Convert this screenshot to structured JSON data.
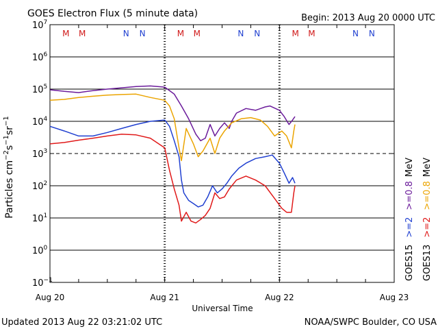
{
  "header": {
    "title": "GOES Electron Flux (5 minute data)",
    "begin": "Begin: 2013 Aug 20 0000 UTC"
  },
  "footer": {
    "updated": "Updated 2013 Aug 22 03:21:02 UTC",
    "source": "NOAA/SWPC Boulder, CO USA"
  },
  "colors": {
    "goes15_ge2": "#1f3fd0",
    "goes13_ge2": "#e01818",
    "goes15_ge08": "#6a1a9a",
    "goes13_ge08": "#eba400",
    "marker_M": "#d01818",
    "marker_N": "#1f3fd0"
  },
  "chart_data": {
    "type": "line",
    "title": "GOES Electron Flux (5 minute data)",
    "xlabel": "Universal Time",
    "ylabel": "Particles cm⁻²s⁻¹sr⁻¹",
    "ylabel_parts": {
      "base": "Particles cm",
      "e1": "−2",
      "mid1": "s",
      "e2": "−1",
      "mid2": "sr",
      "e3": "−1"
    },
    "y_scale": "log",
    "ylim": [
      0.1,
      10000000
    ],
    "y_ticks": [
      {
        "value": 10000000,
        "exp": "7"
      },
      {
        "value": 1000000,
        "exp": "6"
      },
      {
        "value": 100000,
        "exp": "5"
      },
      {
        "value": 10000,
        "exp": "4"
      },
      {
        "value": 1000,
        "exp": "3"
      },
      {
        "value": 100,
        "exp": "2"
      },
      {
        "value": 10,
        "exp": "1"
      },
      {
        "value": 1,
        "exp": "0"
      },
      {
        "value": 0.1,
        "exp": "−1"
      }
    ],
    "threshold": 1000,
    "x_range": [
      "2013-08-20 00:00",
      "2013-08-23 00:00"
    ],
    "x_ticks": [
      {
        "at": "2013-08-20 00:00",
        "label": "Aug 20"
      },
      {
        "at": "2013-08-21 00:00",
        "label": "Aug 21"
      },
      {
        "at": "2013-08-22 00:00",
        "label": "Aug 22"
      },
      {
        "at": "2013-08-23 00:00",
        "label": "Aug 23"
      }
    ],
    "markers": [
      {
        "at": "2013-08-20 03:20",
        "label": "M",
        "kind": "M"
      },
      {
        "at": "2013-08-20 06:45",
        "label": "M",
        "kind": "M"
      },
      {
        "at": "2013-08-20 15:55",
        "label": "N",
        "kind": "N"
      },
      {
        "at": "2013-08-20 19:20",
        "label": "N",
        "kind": "N"
      },
      {
        "at": "2013-08-21 03:20",
        "label": "M",
        "kind": "M"
      },
      {
        "at": "2013-08-21 06:45",
        "label": "M",
        "kind": "M"
      },
      {
        "at": "2013-08-21 15:55",
        "label": "N",
        "kind": "N"
      },
      {
        "at": "2013-08-21 19:20",
        "label": "N",
        "kind": "N"
      },
      {
        "at": "2013-08-22 03:20",
        "label": "M",
        "kind": "M"
      },
      {
        "at": "2013-08-22 06:45",
        "label": "M",
        "kind": "M"
      },
      {
        "at": "2013-08-22 15:55",
        "label": "N",
        "kind": "N"
      },
      {
        "at": "2013-08-22 19:20",
        "label": "N",
        "kind": "N"
      }
    ],
    "legend": [
      {
        "satellite": "GOES15",
        "threshold": ">=2",
        "energy_threshold": ">=0.8",
        "unit": "MeV"
      },
      {
        "satellite": "GOES13",
        "threshold": ">=2",
        "energy_threshold": ">=0.8",
        "unit": "MeV"
      }
    ],
    "series": [
      {
        "satellite": "GOES15",
        "threshold": ">=0.8 MeV",
        "color_key": "goes15_ge08",
        "points": [
          [
            "2013-08-20 00:00",
            95000
          ],
          [
            "2013-08-20 03:00",
            85000
          ],
          [
            "2013-08-20 06:00",
            78000
          ],
          [
            "2013-08-20 09:00",
            90000
          ],
          [
            "2013-08-20 12:00",
            100000
          ],
          [
            "2013-08-20 15:00",
            110000
          ],
          [
            "2013-08-20 18:00",
            120000
          ],
          [
            "2013-08-20 21:00",
            125000
          ],
          [
            "2013-08-21 00:00",
            115000
          ],
          [
            "2013-08-21 02:00",
            70000
          ],
          [
            "2013-08-21 03:30",
            30000
          ],
          [
            "2013-08-21 05:00",
            12000
          ],
          [
            "2013-08-21 06:30",
            4000
          ],
          [
            "2013-08-21 07:30",
            2500
          ],
          [
            "2013-08-21 08:30",
            3000
          ],
          [
            "2013-08-21 09:30",
            8000
          ],
          [
            "2013-08-21 10:30",
            3500
          ],
          [
            "2013-08-21 11:30",
            6000
          ],
          [
            "2013-08-21 12:30",
            9000
          ],
          [
            "2013-08-21 13:30",
            6000
          ],
          [
            "2013-08-21 14:00",
            10000
          ],
          [
            "2013-08-21 15:00",
            18000
          ],
          [
            "2013-08-21 17:00",
            25000
          ],
          [
            "2013-08-21 19:00",
            22000
          ],
          [
            "2013-08-21 21:00",
            28000
          ],
          [
            "2013-08-21 22:00",
            30000
          ],
          [
            "2013-08-22 00:00",
            22000
          ],
          [
            "2013-08-22 01:00",
            14000
          ],
          [
            "2013-08-22 02:00",
            8000
          ],
          [
            "2013-08-22 02:45",
            11000
          ],
          [
            "2013-08-22 03:15",
            14000
          ]
        ]
      },
      {
        "satellite": "GOES13",
        "threshold": ">=0.8 MeV",
        "color_key": "goes13_ge08",
        "points": [
          [
            "2013-08-20 00:00",
            45000
          ],
          [
            "2013-08-20 03:00",
            48000
          ],
          [
            "2013-08-20 06:00",
            55000
          ],
          [
            "2013-08-20 09:00",
            60000
          ],
          [
            "2013-08-20 12:00",
            65000
          ],
          [
            "2013-08-20 15:00",
            68000
          ],
          [
            "2013-08-20 18:00",
            70000
          ],
          [
            "2013-08-20 21:00",
            55000
          ],
          [
            "2013-08-21 00:00",
            45000
          ],
          [
            "2013-08-21 01:00",
            30000
          ],
          [
            "2013-08-21 02:00",
            12000
          ],
          [
            "2013-08-21 03:00",
            1500
          ],
          [
            "2013-08-21 03:30",
            600
          ],
          [
            "2013-08-21 04:30",
            6000
          ],
          [
            "2013-08-21 06:00",
            2000
          ],
          [
            "2013-08-21 07:00",
            800
          ],
          [
            "2013-08-21 08:00",
            1200
          ],
          [
            "2013-08-21 09:30",
            3000
          ],
          [
            "2013-08-21 10:30",
            1000
          ],
          [
            "2013-08-21 11:30",
            3000
          ],
          [
            "2013-08-21 12:30",
            5000
          ],
          [
            "2013-08-21 14:00",
            9000
          ],
          [
            "2013-08-21 16:00",
            12000
          ],
          [
            "2013-08-21 18:00",
            13000
          ],
          [
            "2013-08-21 20:00",
            11000
          ],
          [
            "2013-08-21 21:30",
            7000
          ],
          [
            "2013-08-21 23:00",
            3500
          ],
          [
            "2013-08-22 00:30",
            5000
          ],
          [
            "2013-08-22 01:30",
            3500
          ],
          [
            "2013-08-22 02:30",
            1500
          ],
          [
            "2013-08-22 03:00",
            5000
          ],
          [
            "2013-08-22 03:15",
            8000
          ]
        ]
      },
      {
        "satellite": "GOES15",
        "threshold": ">=2 MeV",
        "color_key": "goes15_ge2",
        "points": [
          [
            "2013-08-20 00:00",
            7000
          ],
          [
            "2013-08-20 03:00",
            5000
          ],
          [
            "2013-08-20 06:00",
            3500
          ],
          [
            "2013-08-20 09:00",
            3500
          ],
          [
            "2013-08-20 12:00",
            4500
          ],
          [
            "2013-08-20 15:00",
            6000
          ],
          [
            "2013-08-20 18:00",
            8000
          ],
          [
            "2013-08-20 21:00",
            10000
          ],
          [
            "2013-08-21 00:00",
            11000
          ],
          [
            "2013-08-21 01:00",
            7000
          ],
          [
            "2013-08-21 02:00",
            2500
          ],
          [
            "2013-08-21 03:00",
            800
          ],
          [
            "2013-08-21 03:30",
            150
          ],
          [
            "2013-08-21 04:00",
            60
          ],
          [
            "2013-08-21 05:00",
            35
          ],
          [
            "2013-08-21 06:00",
            28
          ],
          [
            "2013-08-21 07:00",
            22
          ],
          [
            "2013-08-21 08:00",
            25
          ],
          [
            "2013-08-21 09:00",
            45
          ],
          [
            "2013-08-21 10:00",
            100
          ],
          [
            "2013-08-21 11:00",
            60
          ],
          [
            "2013-08-21 12:00",
            80
          ],
          [
            "2013-08-21 13:00",
            120
          ],
          [
            "2013-08-21 14:00",
            200
          ],
          [
            "2013-08-21 15:30",
            350
          ],
          [
            "2013-08-21 17:00",
            500
          ],
          [
            "2013-08-21 19:00",
            700
          ],
          [
            "2013-08-21 21:00",
            800
          ],
          [
            "2013-08-21 22:30",
            900
          ],
          [
            "2013-08-22 00:00",
            500
          ],
          [
            "2013-08-22 01:00",
            250
          ],
          [
            "2013-08-22 02:00",
            120
          ],
          [
            "2013-08-22 02:45",
            180
          ],
          [
            "2013-08-22 03:15",
            120
          ]
        ]
      },
      {
        "satellite": "GOES13",
        "threshold": ">=2 MeV",
        "color_key": "goes13_ge2",
        "points": [
          [
            "2013-08-20 00:00",
            2000
          ],
          [
            "2013-08-20 03:00",
            2200
          ],
          [
            "2013-08-20 06:00",
            2600
          ],
          [
            "2013-08-20 09:00",
            3000
          ],
          [
            "2013-08-20 12:00",
            3500
          ],
          [
            "2013-08-20 15:00",
            4000
          ],
          [
            "2013-08-20 18:00",
            3800
          ],
          [
            "2013-08-20 21:00",
            3000
          ],
          [
            "2013-08-21 00:00",
            1500
          ],
          [
            "2013-08-21 01:00",
            300
          ],
          [
            "2013-08-21 02:00",
            80
          ],
          [
            "2013-08-21 03:00",
            25
          ],
          [
            "2013-08-21 03:30",
            8
          ],
          [
            "2013-08-21 04:30",
            15
          ],
          [
            "2013-08-21 05:30",
            8
          ],
          [
            "2013-08-21 06:30",
            7
          ],
          [
            "2013-08-21 07:30",
            9
          ],
          [
            "2013-08-21 08:30",
            12
          ],
          [
            "2013-08-21 09:30",
            20
          ],
          [
            "2013-08-21 10:30",
            60
          ],
          [
            "2013-08-21 11:30",
            40
          ],
          [
            "2013-08-21 12:30",
            45
          ],
          [
            "2013-08-21 13:30",
            80
          ],
          [
            "2013-08-21 15:00",
            150
          ],
          [
            "2013-08-21 17:00",
            200
          ],
          [
            "2013-08-21 19:00",
            150
          ],
          [
            "2013-08-21 21:00",
            100
          ],
          [
            "2013-08-21 23:00",
            40
          ],
          [
            "2013-08-22 00:30",
            20
          ],
          [
            "2013-08-22 01:30",
            15
          ],
          [
            "2013-08-22 02:30",
            15
          ],
          [
            "2013-08-22 03:00",
            60
          ],
          [
            "2013-08-22 03:15",
            100
          ]
        ]
      }
    ]
  }
}
